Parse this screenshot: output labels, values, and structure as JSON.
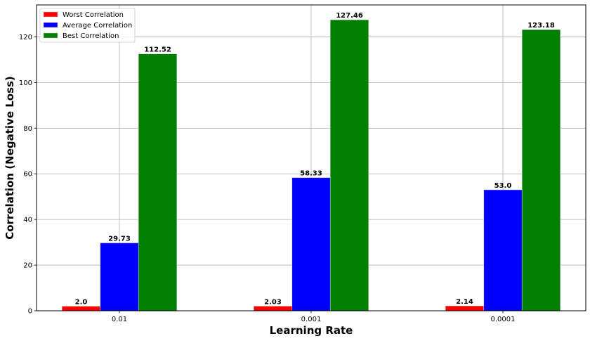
{
  "chart_data": {
    "type": "bar",
    "title": "",
    "xlabel": "Learning Rate",
    "ylabel": "Correlation (Negative Loss)",
    "categories": [
      "0.01",
      "0.001",
      "0.0001"
    ],
    "series": [
      {
        "name": "Worst Correlation",
        "color": "#ff0000",
        "values": [
          2.0,
          2.03,
          2.14
        ],
        "labels": [
          "2.0",
          "2.03",
          "2.14"
        ]
      },
      {
        "name": "Average Correlation",
        "color": "#0000ff",
        "values": [
          29.73,
          58.33,
          53.0
        ],
        "labels": [
          "29.73",
          "58.33",
          "53.0"
        ]
      },
      {
        "name": "Best Correlation",
        "color": "#008000",
        "values": [
          112.52,
          127.46,
          123.18
        ],
        "labels": [
          "112.52",
          "127.46",
          "123.18"
        ]
      }
    ],
    "ylim": [
      0,
      134
    ],
    "yticks": [
      0,
      20,
      40,
      60,
      80,
      100,
      120
    ],
    "ytick_labels": [
      "0",
      "20",
      "40",
      "60",
      "80",
      "100",
      "120"
    ],
    "grid": true,
    "legend_position": "top-left"
  }
}
